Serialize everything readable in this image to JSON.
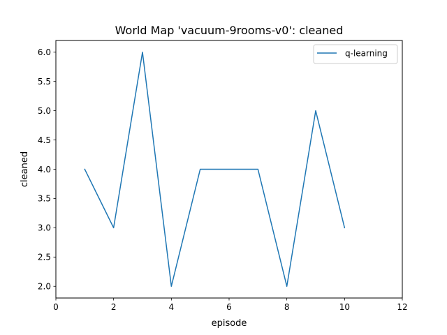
{
  "chart_data": {
    "type": "line",
    "title": "World Map 'vacuum-9rooms-v0': cleaned",
    "xlabel": "episode",
    "ylabel": "cleaned",
    "xlim": [
      0,
      12
    ],
    "ylim": [
      1.8,
      6.2
    ],
    "xticks": [
      0,
      2,
      4,
      6,
      8,
      10,
      12
    ],
    "yticks": [
      2.0,
      2.5,
      3.0,
      3.5,
      4.0,
      4.5,
      5.0,
      5.5,
      6.0
    ],
    "xtick_labels": [
      "0",
      "2",
      "4",
      "6",
      "8",
      "10",
      "12"
    ],
    "ytick_labels": [
      "2.0",
      "2.5",
      "3.0",
      "3.5",
      "4.0",
      "4.5",
      "5.0",
      "5.5",
      "6.0"
    ],
    "grid": false,
    "legend": "top-right",
    "series": [
      {
        "name": "q-learning",
        "color": "#1f77b4",
        "x": [
          1,
          2,
          3,
          4,
          5,
          6,
          7,
          8,
          9,
          10
        ],
        "y": [
          4,
          3,
          6,
          2,
          4,
          4,
          4,
          2,
          5,
          3
        ]
      }
    ]
  }
}
